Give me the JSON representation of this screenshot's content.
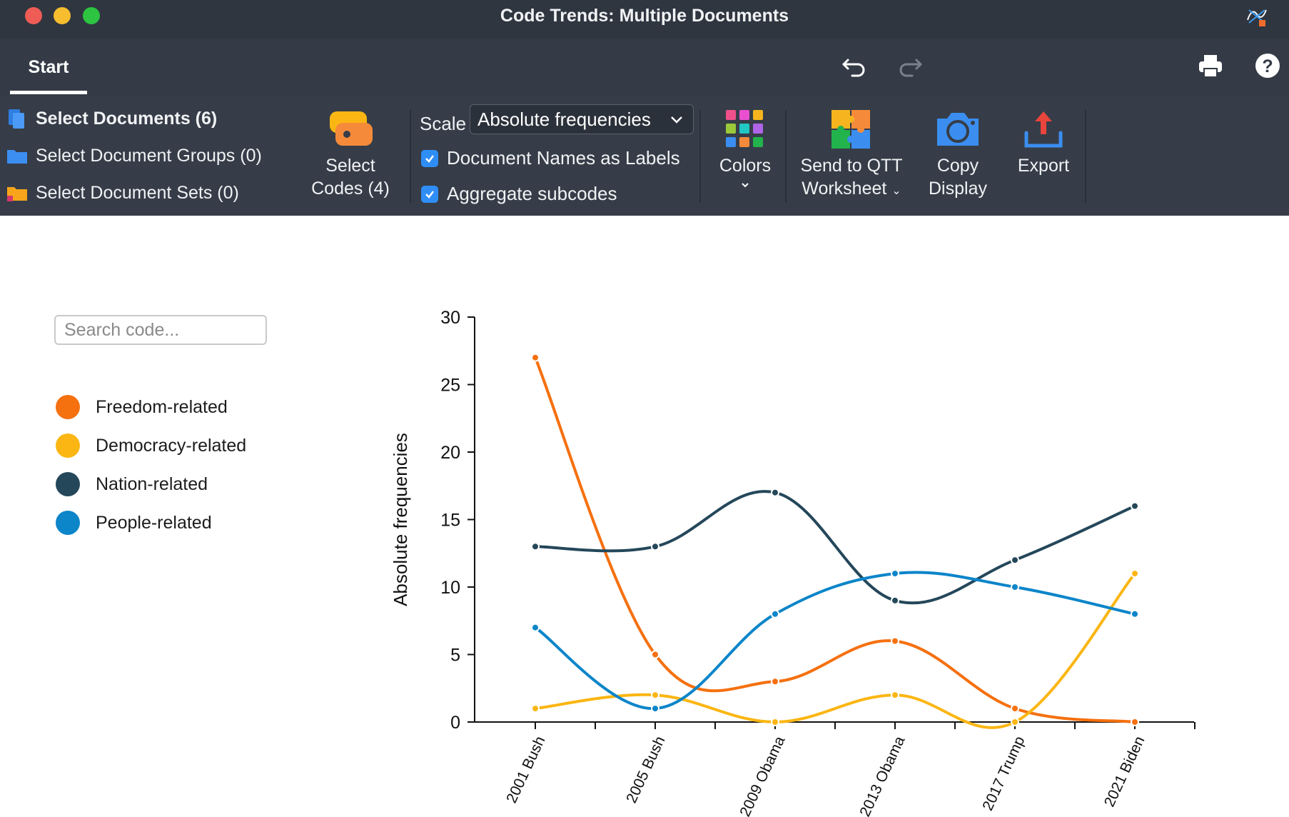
{
  "window": {
    "title": "Code Trends: Multiple Documents"
  },
  "tabs": {
    "start_label": "Start"
  },
  "ribbon": {
    "select_documents": "Select Documents (6)",
    "select_document_groups": "Select Document Groups (0)",
    "select_document_sets": "Select Document Sets (0)",
    "select_codes_line1": "Select",
    "select_codes_line2": "Codes (4)",
    "scale_label": "Scale",
    "scale_value": "Absolute frequencies",
    "doc_names_label": "Document Names as Labels",
    "doc_names_checked": true,
    "aggregate_label": "Aggregate subcodes",
    "aggregate_checked": true,
    "colors_label": "Colors",
    "send_qtt_line1": "Send to QTT",
    "send_qtt_line2": "Worksheet",
    "copy_line1": "Copy",
    "copy_line2": "Display",
    "export_label": "Export"
  },
  "left_panel": {
    "search_placeholder": "Search code..."
  },
  "legend": [
    {
      "name": "Freedom-related",
      "color": "#f5700f"
    },
    {
      "name": "Democracy-related",
      "color": "#fbb613"
    },
    {
      "name": "Nation-related",
      "color": "#24475a"
    },
    {
      "name": "People-related",
      "color": "#0c85c9"
    }
  ],
  "chart_data": {
    "type": "line",
    "ylabel": "Absolute frequencies",
    "xlabel": "",
    "ylim": [
      0,
      30
    ],
    "yticks": [
      0,
      5,
      10,
      15,
      20,
      25,
      30
    ],
    "categories": [
      "2001 Bush",
      "2005 Bush",
      "2009 Obama",
      "2013 Obama",
      "2017 Trump",
      "2021 Biden"
    ],
    "smooth": true,
    "grid": false,
    "legend_position": "left",
    "series": [
      {
        "name": "Freedom-related",
        "color": "#f5700f",
        "values": [
          27,
          5,
          3,
          6,
          1,
          0
        ]
      },
      {
        "name": "Democracy-related",
        "color": "#fbb613",
        "values": [
          1,
          2,
          0,
          2,
          0,
          11
        ]
      },
      {
        "name": "Nation-related",
        "color": "#24475a",
        "values": [
          13,
          13,
          17,
          9,
          12,
          16
        ]
      },
      {
        "name": "People-related",
        "color": "#0c85c9",
        "values": [
          7,
          1,
          8,
          11,
          10,
          8
        ]
      }
    ]
  }
}
